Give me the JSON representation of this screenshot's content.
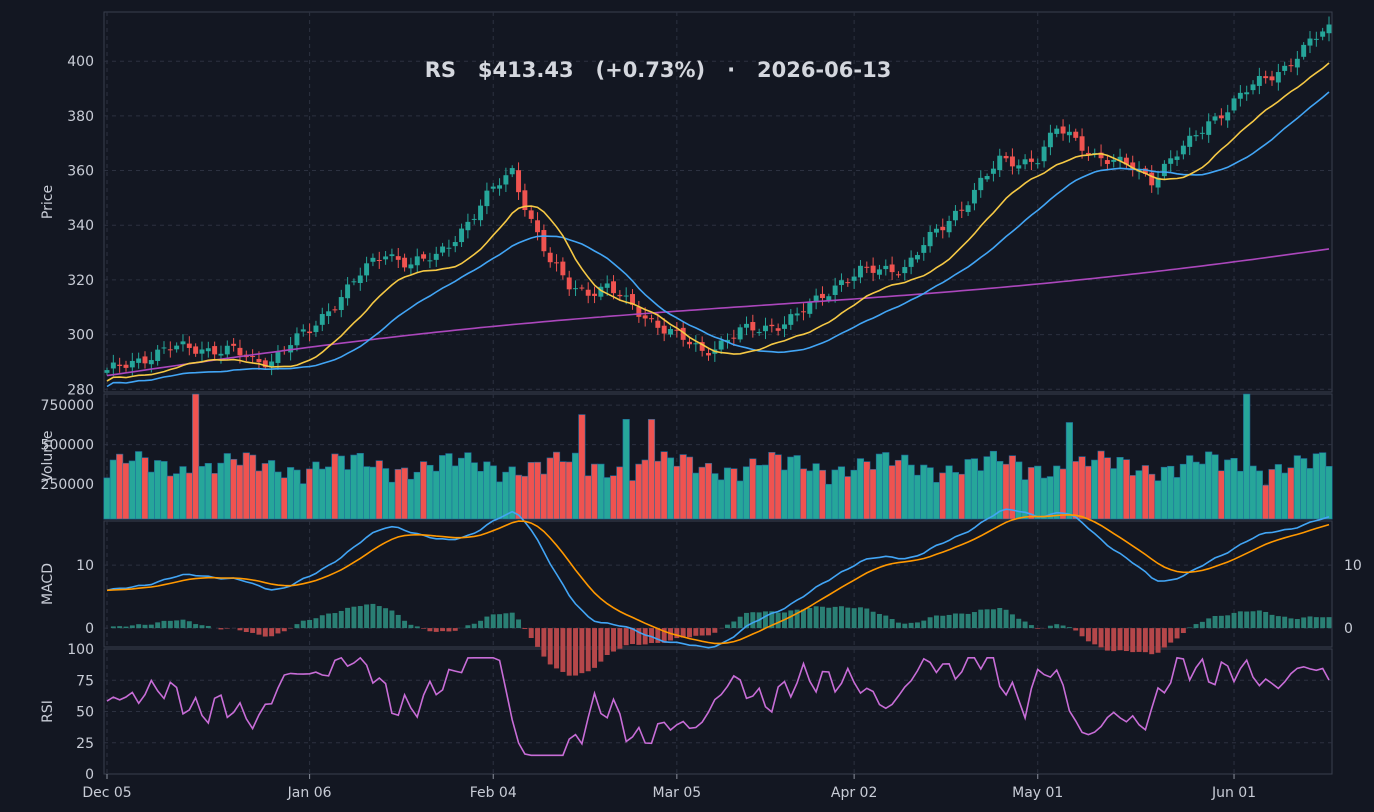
{
  "chart_data": {
    "type": "candlestick",
    "title": "RS   $413.43   (+0.73%)   ·   2026-06-13",
    "colors": {
      "background": "#131722",
      "up": "#26a69a",
      "down": "#ef5350",
      "sma_fast": "#f6c945",
      "sma_mid": "#42a5f5",
      "sma_slow": "#ab47bc",
      "macd": "#42a5f5",
      "signal": "#ff9800",
      "rsi": "#c86dd7"
    },
    "x_start_date": "2025-12-05",
    "x_ticks": [
      {
        "day": 0,
        "label": "Dec 05"
      },
      {
        "day": 32,
        "label": "Jan 06"
      },
      {
        "day": 61,
        "label": "Feb 04"
      },
      {
        "day": 90,
        "label": "Mar 05"
      },
      {
        "day": 118,
        "label": "Apr 02"
      },
      {
        "day": 147,
        "label": "May 01"
      },
      {
        "day": 178,
        "label": "Jun 01"
      }
    ],
    "panels": {
      "price": {
        "ylabel": "Price",
        "ylim": [
          279,
          418
        ],
        "yticks": [
          "280",
          "300",
          "320",
          "340",
          "360",
          "380",
          "400"
        ]
      },
      "volume": {
        "ylabel": "Volume",
        "ylim": [
          30000,
          820000
        ],
        "yticks": [
          "250000",
          "500000",
          "750000"
        ]
      },
      "macd": {
        "ylabel": "MACD",
        "ylim": [
          -3,
          17
        ],
        "yticks": [
          "0",
          "10"
        ],
        "right_yticks": [
          "0",
          "10"
        ]
      },
      "rsi": {
        "ylabel": "RSI",
        "ylim": [
          0,
          100
        ],
        "yticks": [
          "0",
          "25",
          "50",
          "75",
          "100"
        ]
      }
    },
    "candles": [],
    "volume": [],
    "sma_fast": [],
    "sma_mid": [],
    "sma_slow": [],
    "macd": [],
    "signal": [],
    "hist": [],
    "rsi": []
  }
}
